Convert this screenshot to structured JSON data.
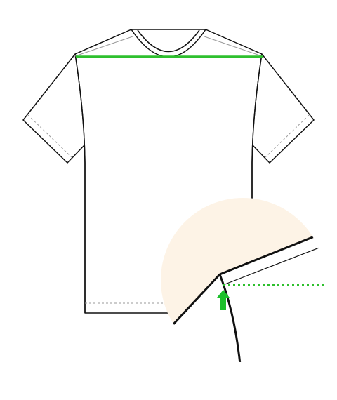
{
  "diagram": {
    "subject": "t-shirt-shoulder-width-measurement",
    "colors": {
      "background": "#ffffff",
      "outline": "#111111",
      "stitch": "#9a9a9a",
      "measure": "#2ec02e",
      "arrow": "#1bbf2a",
      "zoom_fill": "#fdf3e6"
    },
    "icons": {
      "measure_arrow": "arrow-up-icon"
    }
  }
}
